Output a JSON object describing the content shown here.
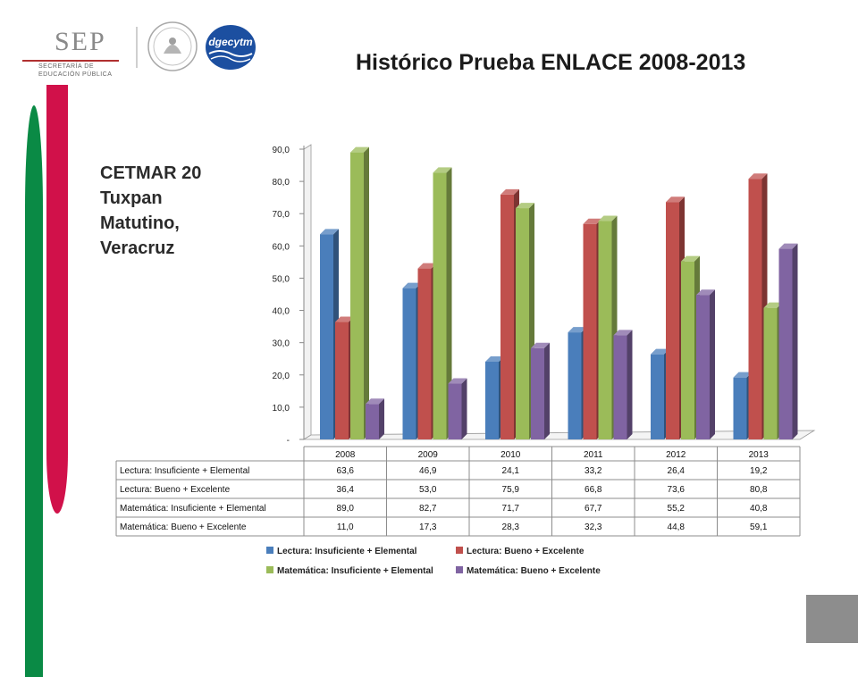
{
  "header": {
    "sep_word": "SEP",
    "sep_line1": "SECRETARÍA DE",
    "sep_line2": "EDUCACIÓN PÚBLICA",
    "dgec_text": "dgecytm"
  },
  "caption": [
    "CETMAR 20",
    "Tuxpan",
    "Matutino,",
    "Veracruz"
  ],
  "colors": {
    "stripe_green": "#0a8a45",
    "stripe_red": "#d1114a",
    "series": [
      "#4a7ebb",
      "#c0504d",
      "#9bbb59",
      "#8064a2"
    ]
  },
  "chart_data": {
    "type": "bar",
    "title": "Histórico Prueba ENLACE 2008-2013",
    "categories": [
      "2008",
      "2009",
      "2010",
      "2011",
      "2012",
      "2013"
    ],
    "ylim": [
      0,
      90
    ],
    "yticks": [
      "-",
      "10,0",
      "20,0",
      "30,0",
      "40,0",
      "50,0",
      "60,0",
      "70,0",
      "80,0",
      "90,0"
    ],
    "grid": false,
    "legend_position": "bottom",
    "series": [
      {
        "name": "Lectura: Insuficiente + Elemental",
        "values": [
          63.6,
          46.9,
          24.1,
          33.2,
          26.4,
          19.2
        ],
        "labels": [
          "63,6",
          "46,9",
          "24,1",
          "33,2",
          "26,4",
          "19,2"
        ]
      },
      {
        "name": "Lectura: Bueno + Excelente",
        "values": [
          36.4,
          53.0,
          75.9,
          66.8,
          73.6,
          80.8
        ],
        "labels": [
          "36,4",
          "53,0",
          "75,9",
          "66,8",
          "73,6",
          "80,8"
        ]
      },
      {
        "name": "Matemática: Insuficiente + Elemental",
        "values": [
          89.0,
          82.7,
          71.7,
          67.7,
          55.2,
          40.8
        ],
        "labels": [
          "89,0",
          "82,7",
          "71,7",
          "67,7",
          "55,2",
          "40,8"
        ]
      },
      {
        "name": "Matemática: Bueno + Excelente",
        "values": [
          11.0,
          17.3,
          28.3,
          32.3,
          44.8,
          59.1
        ],
        "labels": [
          "11,0",
          "17,3",
          "28,3",
          "32,3",
          "44,8",
          "59,1"
        ]
      }
    ]
  }
}
